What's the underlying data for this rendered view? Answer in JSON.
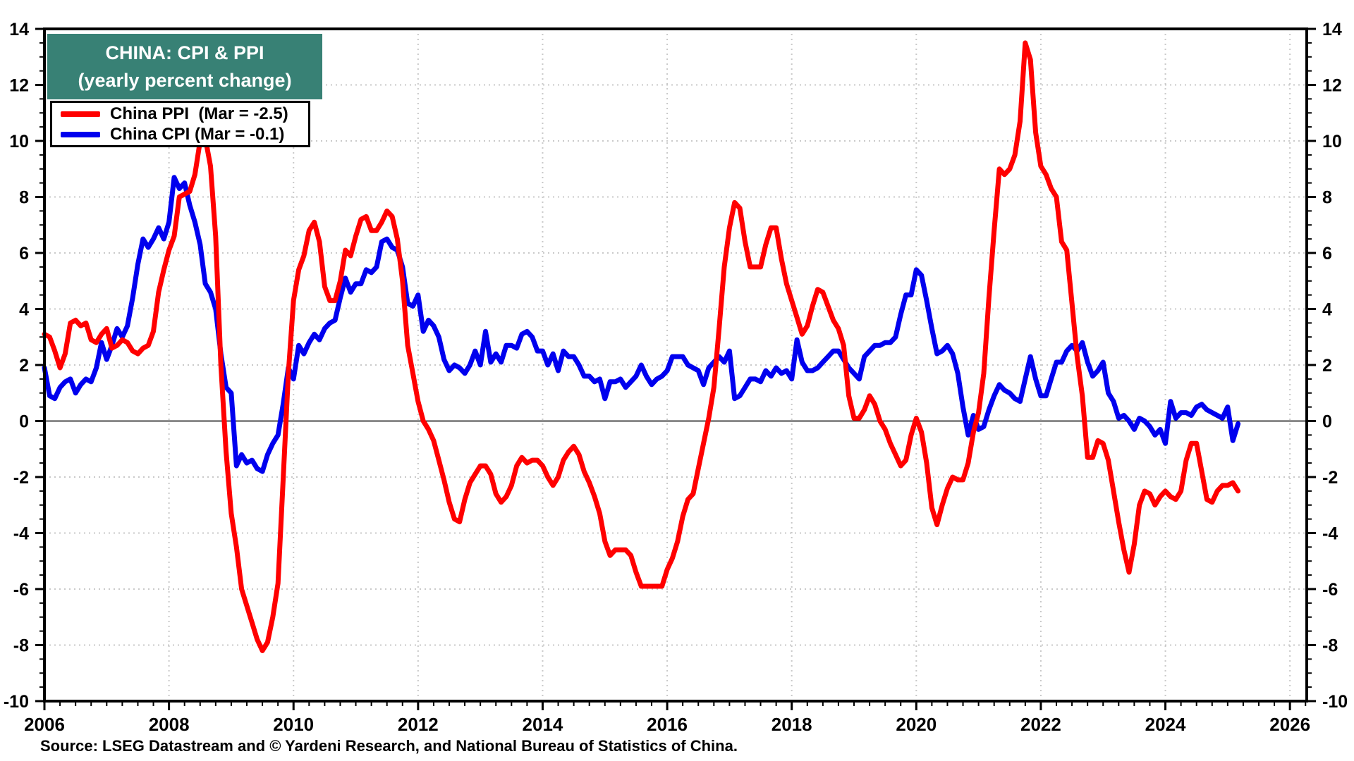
{
  "header": {
    "title_line1": "CHINA: CPI & PPI",
    "title_line2": "(yearly percent change)",
    "title_bg": "#388175",
    "title_color": "#ffffff"
  },
  "legend": {
    "items": [
      {
        "label": "China PPI  (Mar = -2.5)",
        "color": "#ff0000"
      },
      {
        "label": "China CPI (Mar = -0.1)",
        "color": "#0000ee"
      }
    ]
  },
  "source_note": "Source: LSEG Datastream and © Yardeni Research, and National Bureau of Statistics of China.",
  "chart_data": {
    "type": "line",
    "title": "CHINA: CPI & PPI (yearly percent change)",
    "frequency": "monthly",
    "x_start_year": 2006,
    "x_start_month": 1,
    "xlim": [
      2006,
      2026.27
    ],
    "ylim": [
      -10,
      14
    ],
    "x_ticks": [
      2006,
      2008,
      2010,
      2012,
      2014,
      2016,
      2018,
      2020,
      2022,
      2024,
      2026
    ],
    "y_ticks": [
      -10,
      -8,
      -6,
      -4,
      -2,
      0,
      2,
      4,
      6,
      8,
      10,
      12,
      14
    ],
    "y_minor_step": 0.5,
    "x_minor_step": 0.25,
    "grid": "dotted",
    "grid_color": "#c9c9c9",
    "zero_line": true,
    "legend_position": "top-left",
    "series": [
      {
        "name": "China PPI",
        "latest_label": "Mar = -2.5",
        "color": "#ff0000",
        "values": [
          3.1,
          3.0,
          2.5,
          1.9,
          2.4,
          3.5,
          3.6,
          3.4,
          3.5,
          2.9,
          2.8,
          3.1,
          3.3,
          2.6,
          2.7,
          2.9,
          2.8,
          2.5,
          2.4,
          2.6,
          2.7,
          3.2,
          4.6,
          5.4,
          6.1,
          6.6,
          8.0,
          8.1,
          8.2,
          8.8,
          10.0,
          10.1,
          9.1,
          6.6,
          2.0,
          -1.1,
          -3.3,
          -4.5,
          -6.0,
          -6.6,
          -7.2,
          -7.8,
          -8.2,
          -7.9,
          -7.0,
          -5.8,
          -2.1,
          1.7,
          4.3,
          5.4,
          5.9,
          6.8,
          7.1,
          6.4,
          4.8,
          4.3,
          4.3,
          5.0,
          6.1,
          5.9,
          6.6,
          7.2,
          7.3,
          6.8,
          6.8,
          7.1,
          7.5,
          7.3,
          6.5,
          5.0,
          2.7,
          1.7,
          0.7,
          0.0,
          -0.3,
          -0.7,
          -1.4,
          -2.1,
          -2.9,
          -3.5,
          -3.6,
          -2.8,
          -2.2,
          -1.9,
          -1.6,
          -1.6,
          -1.9,
          -2.6,
          -2.9,
          -2.7,
          -2.3,
          -1.6,
          -1.3,
          -1.5,
          -1.4,
          -1.4,
          -1.6,
          -2.0,
          -2.3,
          -2.0,
          -1.4,
          -1.1,
          -0.9,
          -1.2,
          -1.8,
          -2.2,
          -2.7,
          -3.3,
          -4.3,
          -4.8,
          -4.6,
          -4.6,
          -4.6,
          -4.8,
          -5.4,
          -5.9,
          -5.9,
          -5.9,
          -5.9,
          -5.9,
          -5.3,
          -4.9,
          -4.3,
          -3.4,
          -2.8,
          -2.6,
          -1.7,
          -0.8,
          0.1,
          1.2,
          3.3,
          5.5,
          6.9,
          7.8,
          7.6,
          6.4,
          5.5,
          5.5,
          5.5,
          6.3,
          6.9,
          6.9,
          5.8,
          4.9,
          4.3,
          3.7,
          3.1,
          3.4,
          4.1,
          4.7,
          4.6,
          4.1,
          3.6,
          3.3,
          2.7,
          0.9,
          0.1,
          0.1,
          0.4,
          0.9,
          0.6,
          0.0,
          -0.3,
          -0.8,
          -1.2,
          -1.6,
          -1.4,
          -0.5,
          0.1,
          -0.4,
          -1.5,
          -3.1,
          -3.7,
          -3.0,
          -2.4,
          -2.0,
          -2.1,
          -2.1,
          -1.5,
          -0.4,
          0.3,
          1.7,
          4.4,
          6.8,
          9.0,
          8.8,
          9.0,
          9.5,
          10.7,
          13.5,
          12.9,
          10.3,
          9.1,
          8.8,
          8.3,
          8.0,
          6.4,
          6.1,
          4.2,
          2.3,
          0.9,
          -1.3,
          -1.3,
          -0.7,
          -0.8,
          -1.4,
          -2.5,
          -3.6,
          -4.6,
          -5.4,
          -4.4,
          -3.0,
          -2.5,
          -2.6,
          -3.0,
          -2.7,
          -2.5,
          -2.7,
          -2.8,
          -2.5,
          -1.4,
          -0.8,
          -0.8,
          -1.8,
          -2.8,
          -2.9,
          -2.5,
          -2.3,
          -2.3,
          -2.2,
          -2.5
        ]
      },
      {
        "name": "China CPI",
        "latest_label": "Mar = -0.1",
        "color": "#0000ee",
        "values": [
          1.9,
          0.9,
          0.8,
          1.2,
          1.4,
          1.5,
          1.0,
          1.3,
          1.5,
          1.4,
          1.9,
          2.8,
          2.2,
          2.7,
          3.3,
          3.0,
          3.4,
          4.4,
          5.6,
          6.5,
          6.2,
          6.5,
          6.9,
          6.5,
          7.1,
          8.7,
          8.3,
          8.5,
          7.7,
          7.1,
          6.3,
          4.9,
          4.6,
          4.0,
          2.4,
          1.2,
          1.0,
          -1.6,
          -1.2,
          -1.5,
          -1.4,
          -1.7,
          -1.8,
          -1.2,
          -0.8,
          -0.5,
          0.6,
          1.9,
          1.5,
          2.7,
          2.4,
          2.8,
          3.1,
          2.9,
          3.3,
          3.5,
          3.6,
          4.4,
          5.1,
          4.6,
          4.9,
          4.9,
          5.4,
          5.3,
          5.5,
          6.4,
          6.5,
          6.2,
          6.1,
          5.5,
          4.2,
          4.1,
          4.5,
          3.2,
          3.6,
          3.4,
          3.0,
          2.2,
          1.8,
          2.0,
          1.9,
          1.7,
          2.0,
          2.5,
          2.0,
          3.2,
          2.1,
          2.4,
          2.1,
          2.7,
          2.7,
          2.6,
          3.1,
          3.2,
          3.0,
          2.5,
          2.5,
          2.0,
          2.4,
          1.8,
          2.5,
          2.3,
          2.3,
          2.0,
          1.6,
          1.6,
          1.4,
          1.5,
          0.8,
          1.4,
          1.4,
          1.5,
          1.2,
          1.4,
          1.6,
          2.0,
          1.6,
          1.3,
          1.5,
          1.6,
          1.8,
          2.3,
          2.3,
          2.3,
          2.0,
          1.9,
          1.8,
          1.3,
          1.9,
          2.1,
          2.3,
          2.1,
          2.5,
          0.8,
          0.9,
          1.2,
          1.5,
          1.5,
          1.4,
          1.8,
          1.6,
          1.9,
          1.7,
          1.8,
          1.5,
          2.9,
          2.1,
          1.8,
          1.8,
          1.9,
          2.1,
          2.3,
          2.5,
          2.5,
          2.2,
          1.9,
          1.7,
          1.5,
          2.3,
          2.5,
          2.7,
          2.7,
          2.8,
          2.8,
          3.0,
          3.8,
          4.5,
          4.5,
          5.4,
          5.2,
          4.3,
          3.3,
          2.4,
          2.5,
          2.7,
          2.4,
          1.7,
          0.5,
          -0.5,
          0.2,
          -0.3,
          -0.2,
          0.4,
          0.9,
          1.3,
          1.1,
          1.0,
          0.8,
          0.7,
          1.5,
          2.3,
          1.5,
          0.9,
          0.9,
          1.5,
          2.1,
          2.1,
          2.5,
          2.7,
          2.5,
          2.8,
          2.1,
          1.6,
          1.8,
          2.1,
          1.0,
          0.7,
          0.1,
          0.2,
          0.0,
          -0.3,
          0.1,
          0.0,
          -0.2,
          -0.5,
          -0.3,
          -0.8,
          0.7,
          0.1,
          0.3,
          0.3,
          0.2,
          0.5,
          0.6,
          0.4,
          0.3,
          0.2,
          0.1,
          0.5,
          -0.7,
          -0.1
        ]
      }
    ]
  }
}
